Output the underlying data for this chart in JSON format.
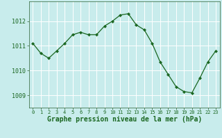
{
  "x": [
    0,
    1,
    2,
    3,
    4,
    5,
    6,
    7,
    8,
    9,
    10,
    11,
    12,
    13,
    14,
    15,
    16,
    17,
    18,
    19,
    20,
    21,
    22,
    23
  ],
  "y": [
    1011.1,
    1010.7,
    1010.5,
    1010.8,
    1011.1,
    1011.45,
    1011.55,
    1011.45,
    1011.45,
    1011.8,
    1012.0,
    1012.25,
    1012.3,
    1011.85,
    1011.65,
    1011.1,
    1010.35,
    1009.85,
    1009.35,
    1009.15,
    1009.1,
    1009.7,
    1010.35,
    1010.8
  ],
  "line_color": "#1a6620",
  "marker": "D",
  "marker_size": 2.2,
  "bg_color": "#c8ecec",
  "grid_color": "#a8d8d8",
  "axis_label_color": "#1a6620",
  "title": "Graphe pression niveau de la mer (hPa)",
  "title_fontsize": 7,
  "ytick_labels": [
    "1009",
    "1010",
    "1011",
    "1012"
  ],
  "yticks": [
    1009,
    1010,
    1011,
    1012
  ],
  "ylim": [
    1008.5,
    1012.8
  ],
  "xlim": [
    -0.5,
    23.5
  ],
  "xtick_labels": [
    "0",
    "1",
    "2",
    "3",
    "4",
    "5",
    "6",
    "7",
    "8",
    "9",
    "10",
    "11",
    "12",
    "13",
    "14",
    "15",
    "16",
    "17",
    "18",
    "19",
    "20",
    "21",
    "22",
    "23"
  ]
}
